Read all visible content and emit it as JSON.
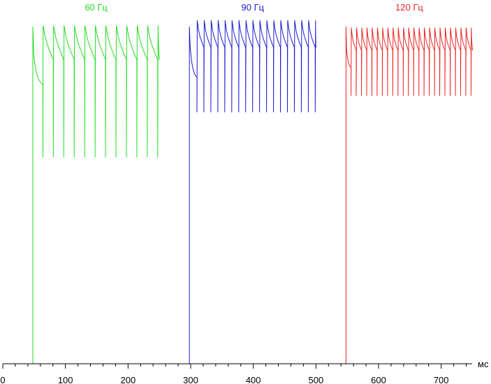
{
  "chart_data": {
    "type": "line",
    "title": "",
    "xlabel": "",
    "ylabel": "",
    "x_unit": "мс",
    "xlim": [
      0,
      780
    ],
    "ylim": [
      0,
      1
    ],
    "x_ticks": [
      0,
      100,
      200,
      300,
      400,
      500,
      600,
      700
    ],
    "grid": false,
    "legend": "none",
    "series": [
      {
        "name": "60 Гц",
        "color": "#22dd22",
        "baseline_range": [
          0,
          48
        ],
        "rise_at": 48,
        "end_at": 250,
        "refresh_ms": 16.67,
        "first_flash": 64,
        "level_high": 0.963,
        "level_low": 0.588,
        "settle_from": 0.905,
        "settle_to": 0.79
      },
      {
        "name": "90 Гц",
        "color": "#1a1ad6",
        "baseline_range": [
          250,
          298
        ],
        "rise_at": 298,
        "end_at": 500,
        "refresh_ms": 11.11,
        "first_flash": 310,
        "level_high": 0.978,
        "level_low": 0.716,
        "settle_from": 0.935,
        "settle_to": 0.81
      },
      {
        "name": "120 Гц",
        "color": "#ee2222",
        "baseline_range": [
          500,
          548
        ],
        "rise_at": 548,
        "end_at": 750,
        "refresh_ms": 8.33,
        "first_flash": 556,
        "level_high": 0.957,
        "level_low": 0.763,
        "settle_from": 0.92,
        "settle_to": 0.84
      }
    ]
  }
}
